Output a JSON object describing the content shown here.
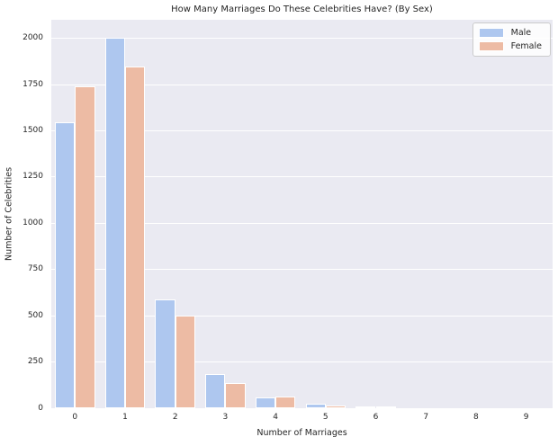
{
  "figure": {
    "kind": "seaborn-style grouped bar chart"
  },
  "chart_data": {
    "type": "bar",
    "title": "How Many Marriages Do These Celebrities Have? (By Sex)",
    "xlabel": "Number of Marriages",
    "ylabel": "Number of Celebrities",
    "categories": [
      "0",
      "1",
      "2",
      "3",
      "4",
      "5",
      "6",
      "7",
      "8",
      "9"
    ],
    "series": [
      {
        "name": "Male",
        "color": "#aec7ef",
        "values": [
          1545,
          2005,
          590,
          185,
          60,
          25,
          8,
          0,
          0,
          0
        ]
      },
      {
        "name": "Female",
        "color": "#edbba4",
        "values": [
          1740,
          1845,
          500,
          135,
          65,
          15,
          5,
          0,
          0,
          0
        ]
      }
    ],
    "yticks": [
      0,
      250,
      500,
      750,
      1000,
      1250,
      1500,
      1750,
      2000
    ],
    "ylim": [
      0,
      2100
    ],
    "grid": true,
    "legend_position": "upper right",
    "plot_background": "#eaeaf2",
    "gridline_color": "#ffffff",
    "text_color": "#262626"
  }
}
